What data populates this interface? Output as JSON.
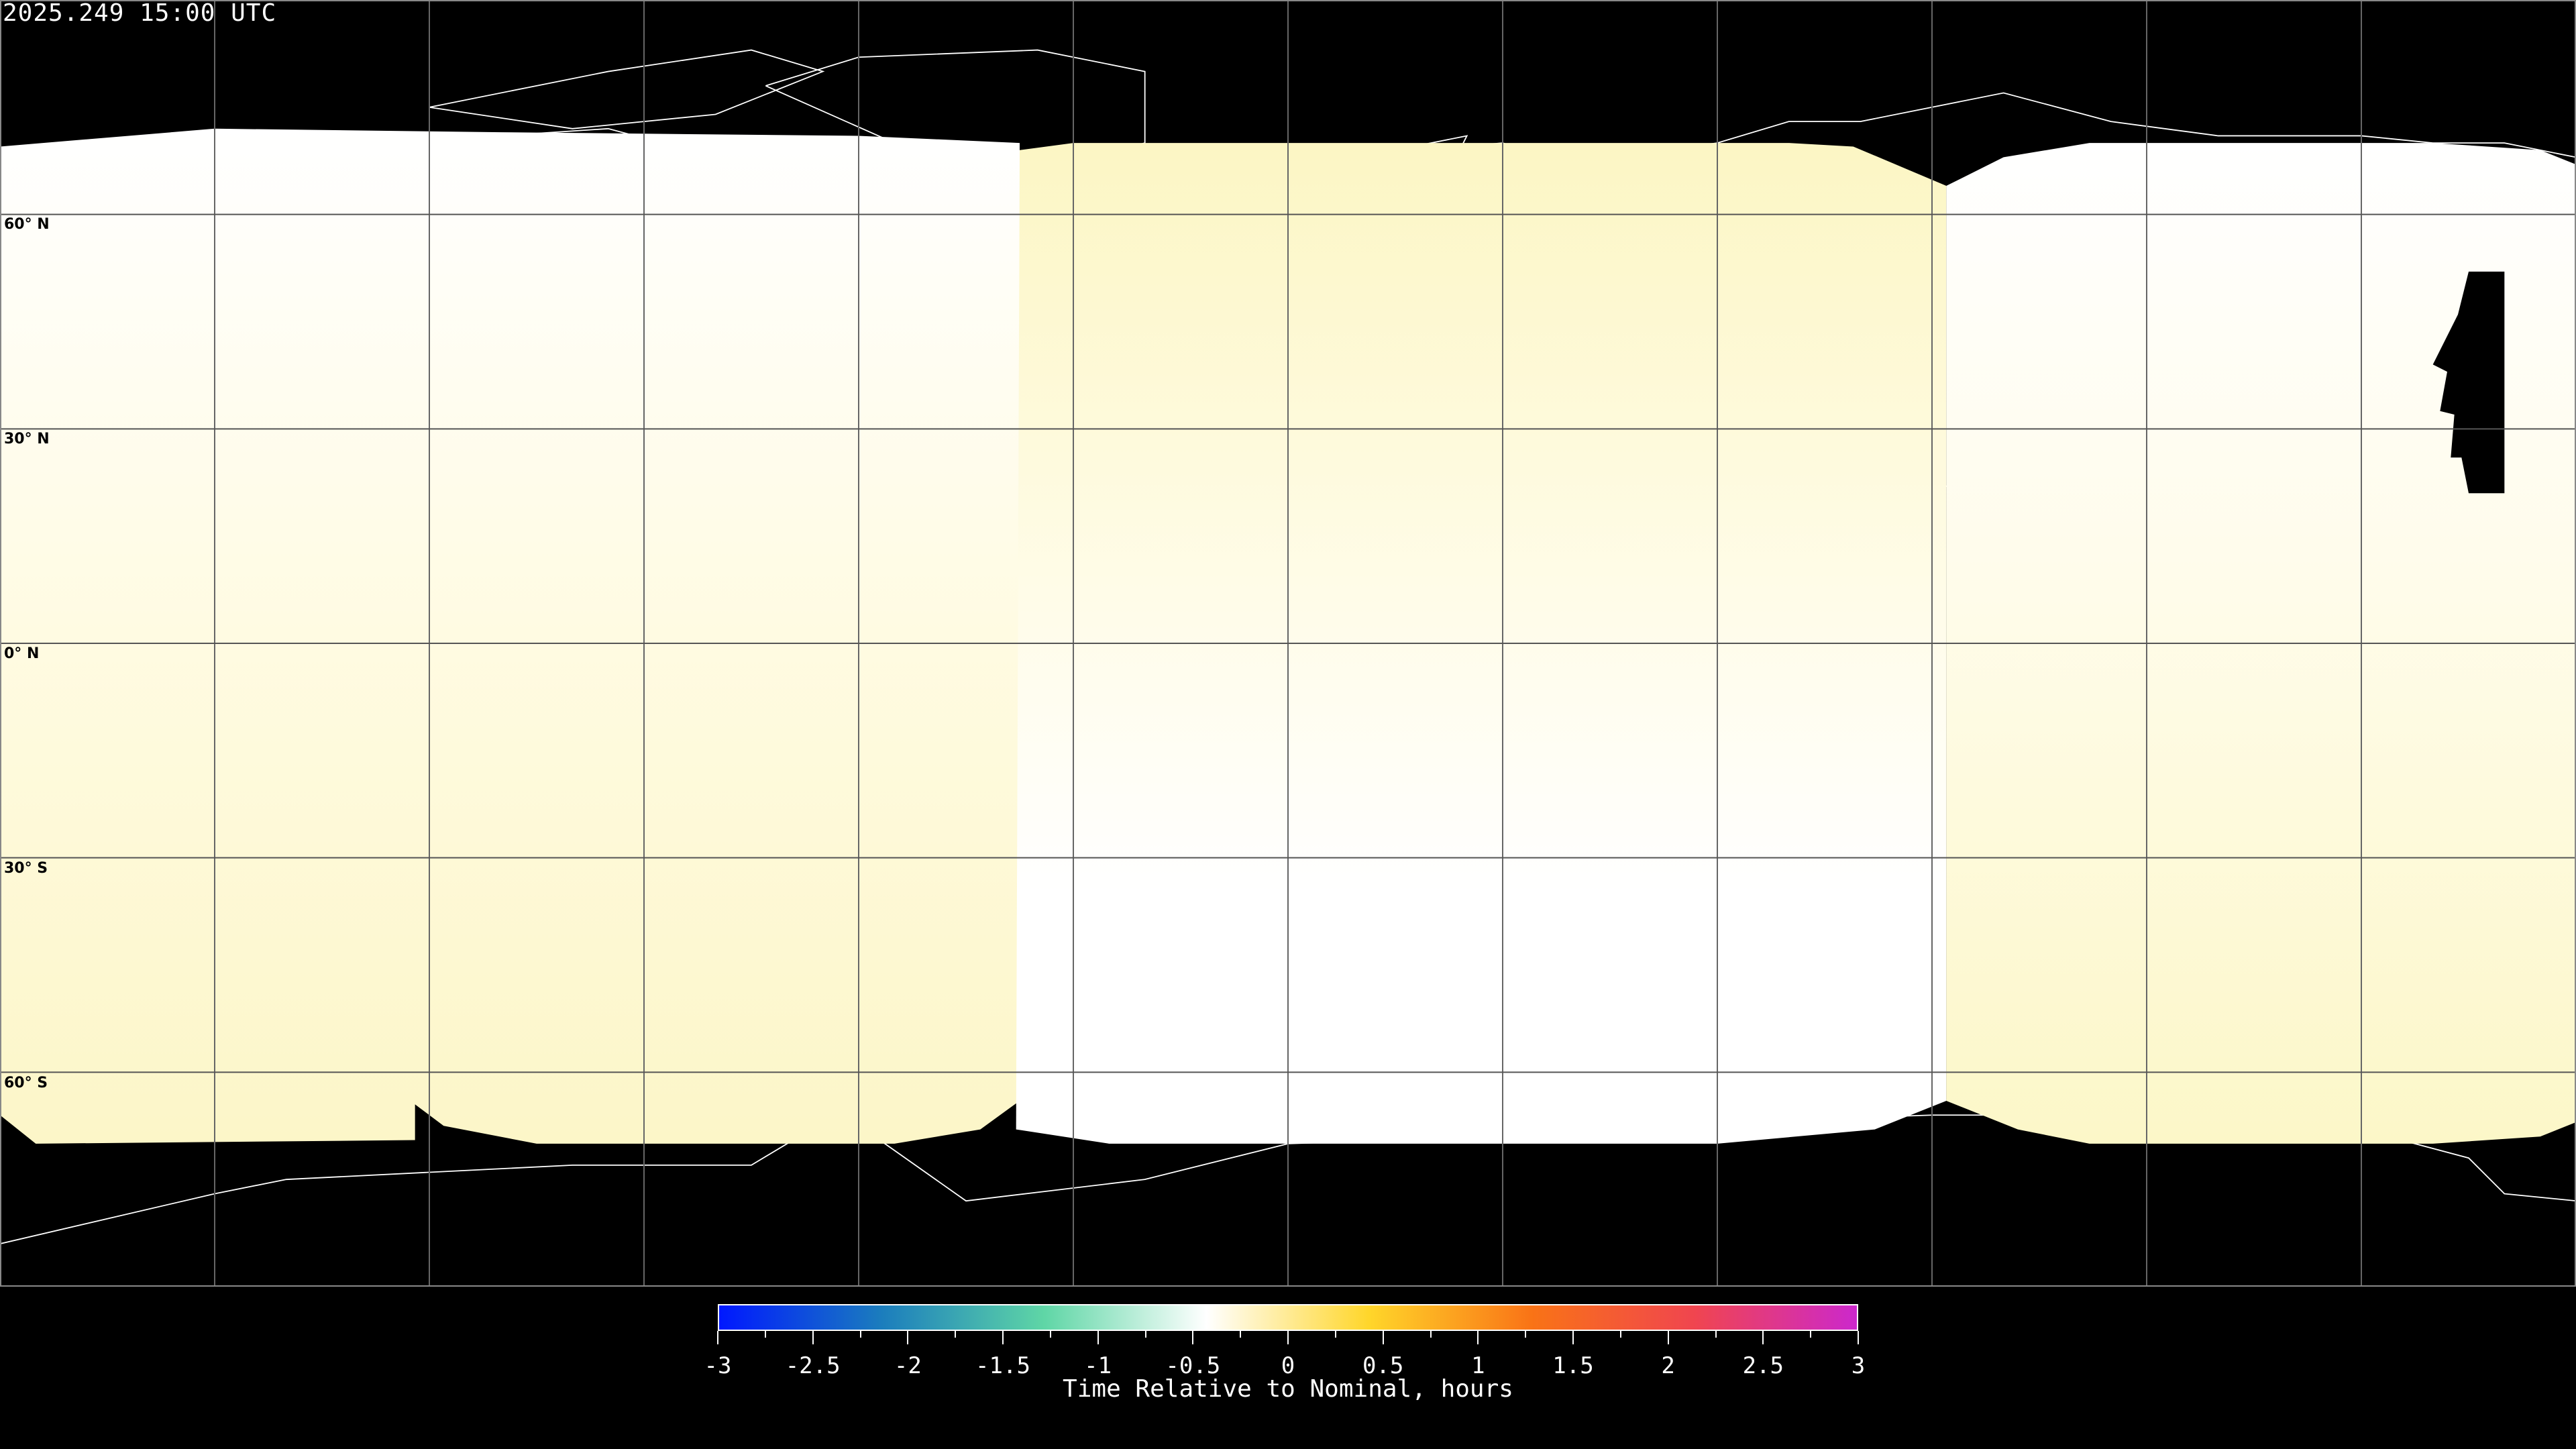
{
  "title": "2025.249 15:00 UTC",
  "map": {
    "projection": "equirectangular",
    "grid_spacing_degrees": 30,
    "latitude_labels": [
      "60° N",
      "30° N",
      "0° N",
      "30° S",
      "60° S"
    ],
    "background_color": "#000000",
    "coastline_color_on_data": "#000000",
    "coastline_color_on_nodata": "#ffffff"
  },
  "colorbar": {
    "min": -3,
    "max": 3,
    "tick_labels": [
      "-3",
      "-2.5",
      "-2",
      "-1.5",
      "-1",
      "-0.5",
      "0",
      "0.5",
      "1",
      "1.5",
      "2",
      "2.5",
      "3"
    ],
    "label": "Time Relative to Nominal, hours",
    "colors": [
      "#0018ff",
      "#1b7dbd",
      "#5fd6a6",
      "#ffffff",
      "#ffd62a",
      "#f97316",
      "#f0454f",
      "#cc28cc"
    ]
  }
}
